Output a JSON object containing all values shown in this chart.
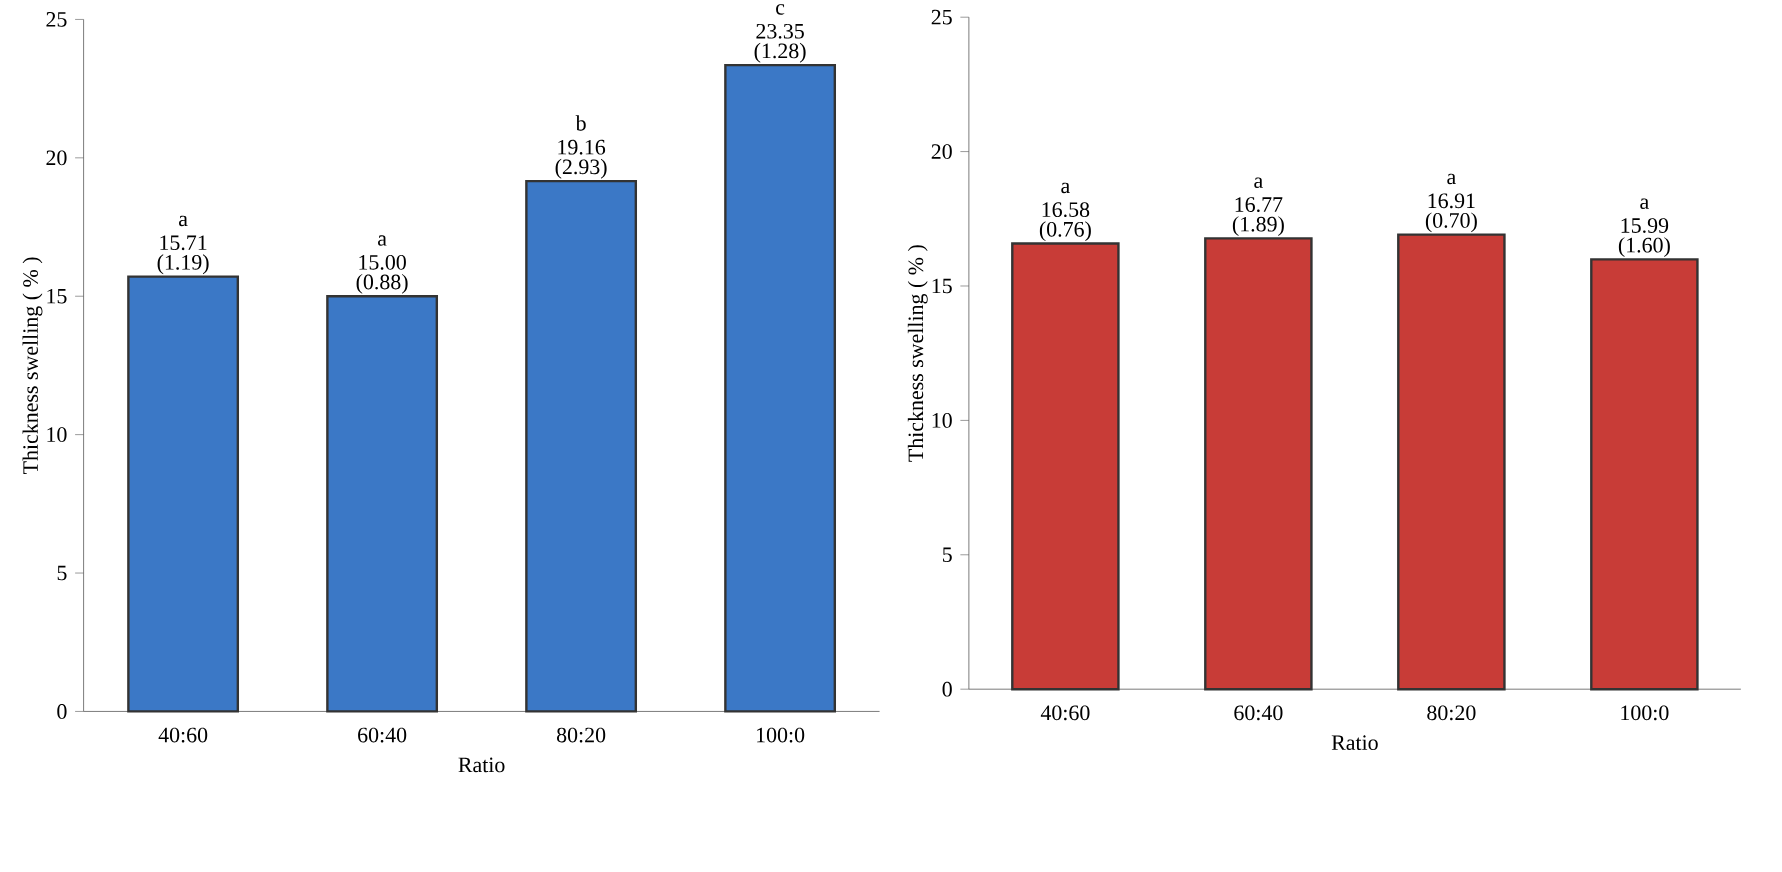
{
  "chart_data": [
    {
      "type": "bar",
      "xlabel": "Ratio",
      "ylabel": "Thickness swelling ( % )",
      "categories": [
        "40:60",
        "60:40",
        "80:20",
        "100:0"
      ],
      "values": [
        15.71,
        15.0,
        19.16,
        23.35
      ],
      "color": "#3b78c6",
      "value_labels": [
        "15.71",
        "15.00",
        "19.16",
        "23.35"
      ],
      "ylim": [
        0,
        25
      ],
      "yticks": [
        0,
        5,
        10,
        15,
        20,
        25
      ],
      "annotations": [
        {
          "text": "a",
          "x": "40:60",
          "y": 15.71
        },
        {
          "text": "(1.19)",
          "x": "40:60",
          "y": 15.71
        },
        {
          "text": "a",
          "x": "60:40",
          "y": 15.0
        },
        {
          "text": "(0.88)",
          "x": "60:40",
          "y": 15.0
        },
        {
          "text": "b",
          "x": "80:20",
          "y": 19.16
        },
        {
          "text": "(2.93)",
          "x": "80:20",
          "y": 19.16
        },
        {
          "text": "c",
          "x": "100:0",
          "y": 23.35
        },
        {
          "text": "(1.28)",
          "x": "100:0",
          "y": 23.35
        }
      ]
    },
    {
      "type": "bar",
      "xlabel": "Ratio",
      "ylabel": "Thickness swelling ( % )",
      "categories": [
        "40:60",
        "60:40",
        "80:20",
        "100:0"
      ],
      "values": [
        16.58,
        16.77,
        16.91,
        15.99
      ],
      "color": "#c83c37",
      "value_labels": [
        "16.58",
        "16.77",
        "16.91",
        "15.99"
      ],
      "ylim": [
        0,
        25
      ],
      "yticks": [
        0,
        5,
        10,
        15,
        20,
        25
      ],
      "annotations": [
        {
          "text": "a",
          "x": "40:60",
          "y": 16.58
        },
        {
          "text": "(0.76)",
          "x": "40:60",
          "y": 16.58
        },
        {
          "text": "a",
          "x": "60:40",
          "y": 16.77
        },
        {
          "text": "(1.89)",
          "x": "60:40",
          "y": 16.77
        },
        {
          "text": "a",
          "x": "80:20",
          "y": 16.91
        },
        {
          "text": "(0.70)",
          "x": "80:20",
          "y": 16.91
        },
        {
          "text": "a",
          "x": "100:0",
          "y": 15.99
        },
        {
          "text": "(1.60)",
          "x": "100:0",
          "y": 15.99
        }
      ]
    }
  ]
}
